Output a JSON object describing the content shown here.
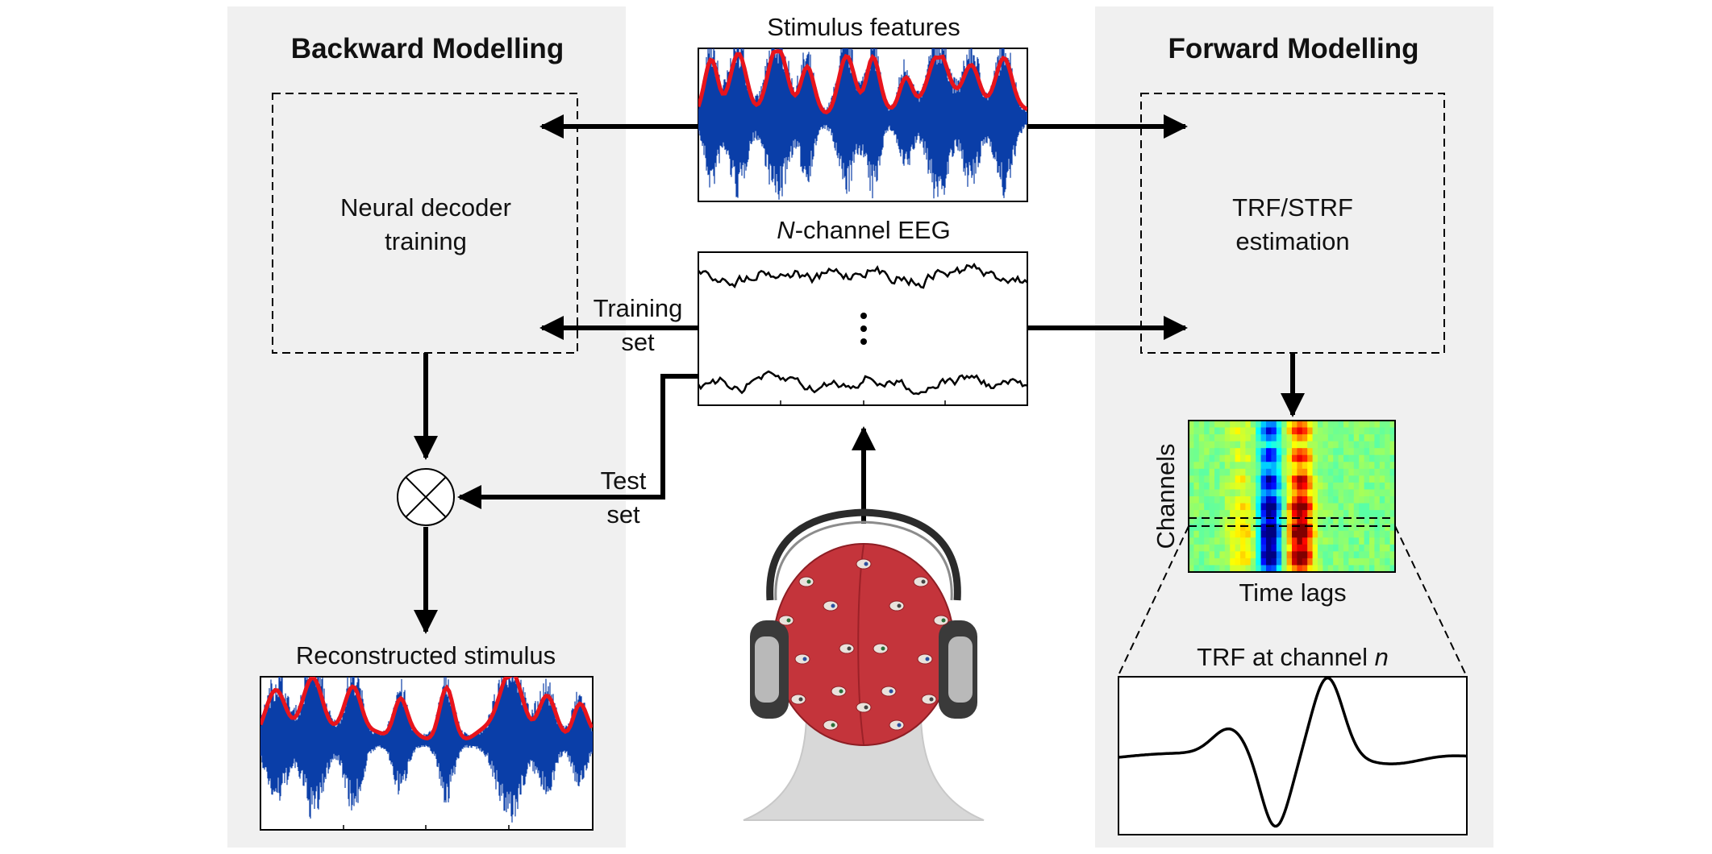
{
  "backward": {
    "title": "Backward Modelling",
    "box_label_line1": "Neural decoder",
    "box_label_line2": "training",
    "reconstructed_title": "Reconstructed stimulus"
  },
  "forward": {
    "title": "Forward Modelling",
    "box_label_line1": "TRF/STRF",
    "box_label_line2": "estimation",
    "heatmap_ylabel": "Channels",
    "heatmap_xlabel": "Time lags",
    "trf_title_prefix": "TRF at channel ",
    "trf_title_var": "n"
  },
  "center": {
    "stimulus_title": "Stimulus features",
    "eeg_title_var": "N",
    "eeg_title_rest": "-channel EEG",
    "training_line1": "Training",
    "training_line2": "set",
    "test_line1": "Test",
    "test_line2": "set"
  },
  "colors": {
    "panel_bg": "#f0f0f0",
    "envelope_red": "#e8141c",
    "waveform_blue": "#0a3ea8",
    "line": "#000000"
  }
}
